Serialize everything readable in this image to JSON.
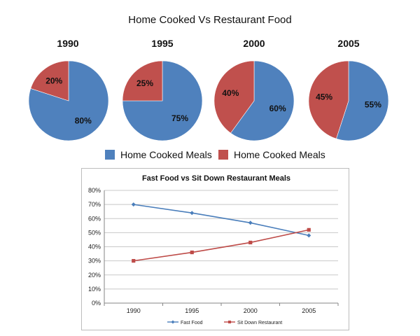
{
  "title": "Home Cooked Vs Restaurant Food",
  "colors": {
    "blue": "#4f81bd",
    "red": "#c0504d",
    "line_blue": "#4a7ebb",
    "line_red": "#be4b48"
  },
  "chart_data": [
    {
      "type": "pie",
      "title": "1990",
      "labels": [
        "Home Cooked Meals",
        "Home Cooked Meals"
      ],
      "values": [
        80,
        20
      ],
      "value_labels": [
        "80%",
        "20%"
      ]
    },
    {
      "type": "pie",
      "title": "1995",
      "labels": [
        "Home Cooked Meals",
        "Home Cooked Meals"
      ],
      "values": [
        75,
        25
      ],
      "value_labels": [
        "75%",
        "25%"
      ]
    },
    {
      "type": "pie",
      "title": "2000",
      "labels": [
        "Home Cooked Meals",
        "Home Cooked Meals"
      ],
      "values": [
        60,
        40
      ],
      "value_labels": [
        "60%",
        "40%"
      ]
    },
    {
      "type": "pie",
      "title": "2005",
      "labels": [
        "Home Cooked Meals",
        "Home Cooked Meals"
      ],
      "values": [
        55,
        45
      ],
      "value_labels": [
        "55%",
        "45%"
      ]
    },
    {
      "type": "line",
      "title": "Fast Food vs Sit Down Restaurant Meals",
      "categories": [
        "1990",
        "1995",
        "2000",
        "2005"
      ],
      "series": [
        {
          "name": "Fast Food",
          "values": [
            70,
            64,
            57,
            48
          ]
        },
        {
          "name": "Sit Down Restaurant",
          "values": [
            30,
            36,
            43,
            52
          ]
        }
      ],
      "ylim": [
        0,
        80
      ],
      "yticks": [
        "0%",
        "10%",
        "20%",
        "30%",
        "40%",
        "50%",
        "60%",
        "70%",
        "80%"
      ],
      "grid": true,
      "legend": "bottom"
    }
  ],
  "legend": [
    "Home Cooked Meals",
    "Home Cooked Meals"
  ]
}
